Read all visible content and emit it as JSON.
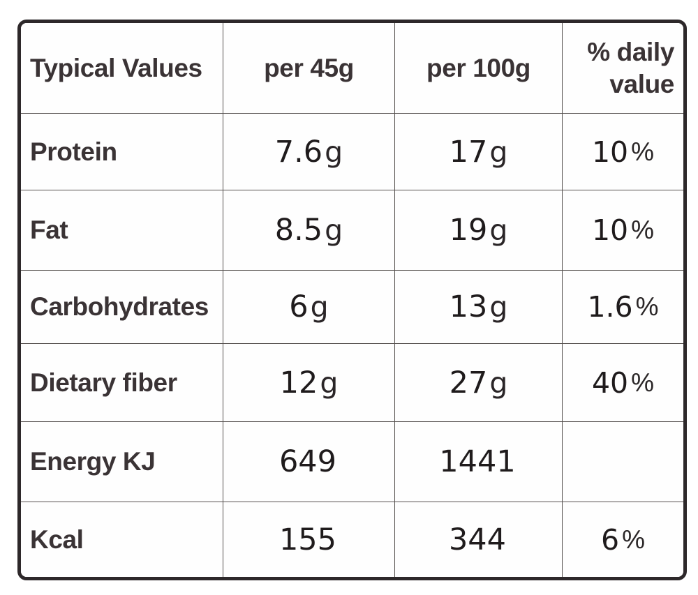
{
  "colors": {
    "outer_border": "#2d282a",
    "grid_line": "#55504e",
    "label_text": "#3a3335",
    "value_text": "#1f1b1c",
    "background": "#ffffff"
  },
  "table": {
    "header": {
      "typical_values": "Typical Values",
      "per_45g": "per 45g",
      "per_100g": "per 100g",
      "daily_line1": "% daily",
      "daily_line2": "value"
    },
    "rows": [
      {
        "label": "Protein",
        "per45": "7.6",
        "per45_unit": "g",
        "per100": "17",
        "per100_unit": "g",
        "daily": "10",
        "daily_unit": "%"
      },
      {
        "label": "Fat",
        "per45": "8.5",
        "per45_unit": "g",
        "per100": "19",
        "per100_unit": "g",
        "daily": "10",
        "daily_unit": "%"
      },
      {
        "label": "Carbohydrates",
        "per45": "6",
        "per45_unit": "g",
        "per100": "13",
        "per100_unit": "g",
        "daily": "1.6",
        "daily_unit": "%"
      },
      {
        "label": "Dietary fiber",
        "per45": "12",
        "per45_unit": "g",
        "per100": "27",
        "per100_unit": "g",
        "daily": "40",
        "daily_unit": "%"
      },
      {
        "label": "Energy KJ",
        "per45": "649",
        "per45_unit": "",
        "per100": "1441",
        "per100_unit": "",
        "daily": "",
        "daily_unit": ""
      },
      {
        "label": "Kcal",
        "per45": "155",
        "per45_unit": "",
        "per100": "344",
        "per100_unit": "",
        "daily": "6",
        "daily_unit": "%"
      }
    ]
  },
  "chart_data": {
    "type": "table",
    "title": "Typical Values nutrition table",
    "columns": [
      "Typical Values",
      "per 45g",
      "per 100g",
      "% daily value"
    ],
    "rows": [
      [
        "Protein",
        "7.6g",
        "17g",
        "10%"
      ],
      [
        "Fat",
        "8.5g",
        "19g",
        "10%"
      ],
      [
        "Carbohydrates",
        "6g",
        "13g",
        "1.6%"
      ],
      [
        "Dietary fiber",
        "12g",
        "27g",
        "40%"
      ],
      [
        "Energy KJ",
        "649",
        "1441",
        ""
      ],
      [
        "Kcal",
        "155",
        "344",
        "6%"
      ]
    ]
  }
}
